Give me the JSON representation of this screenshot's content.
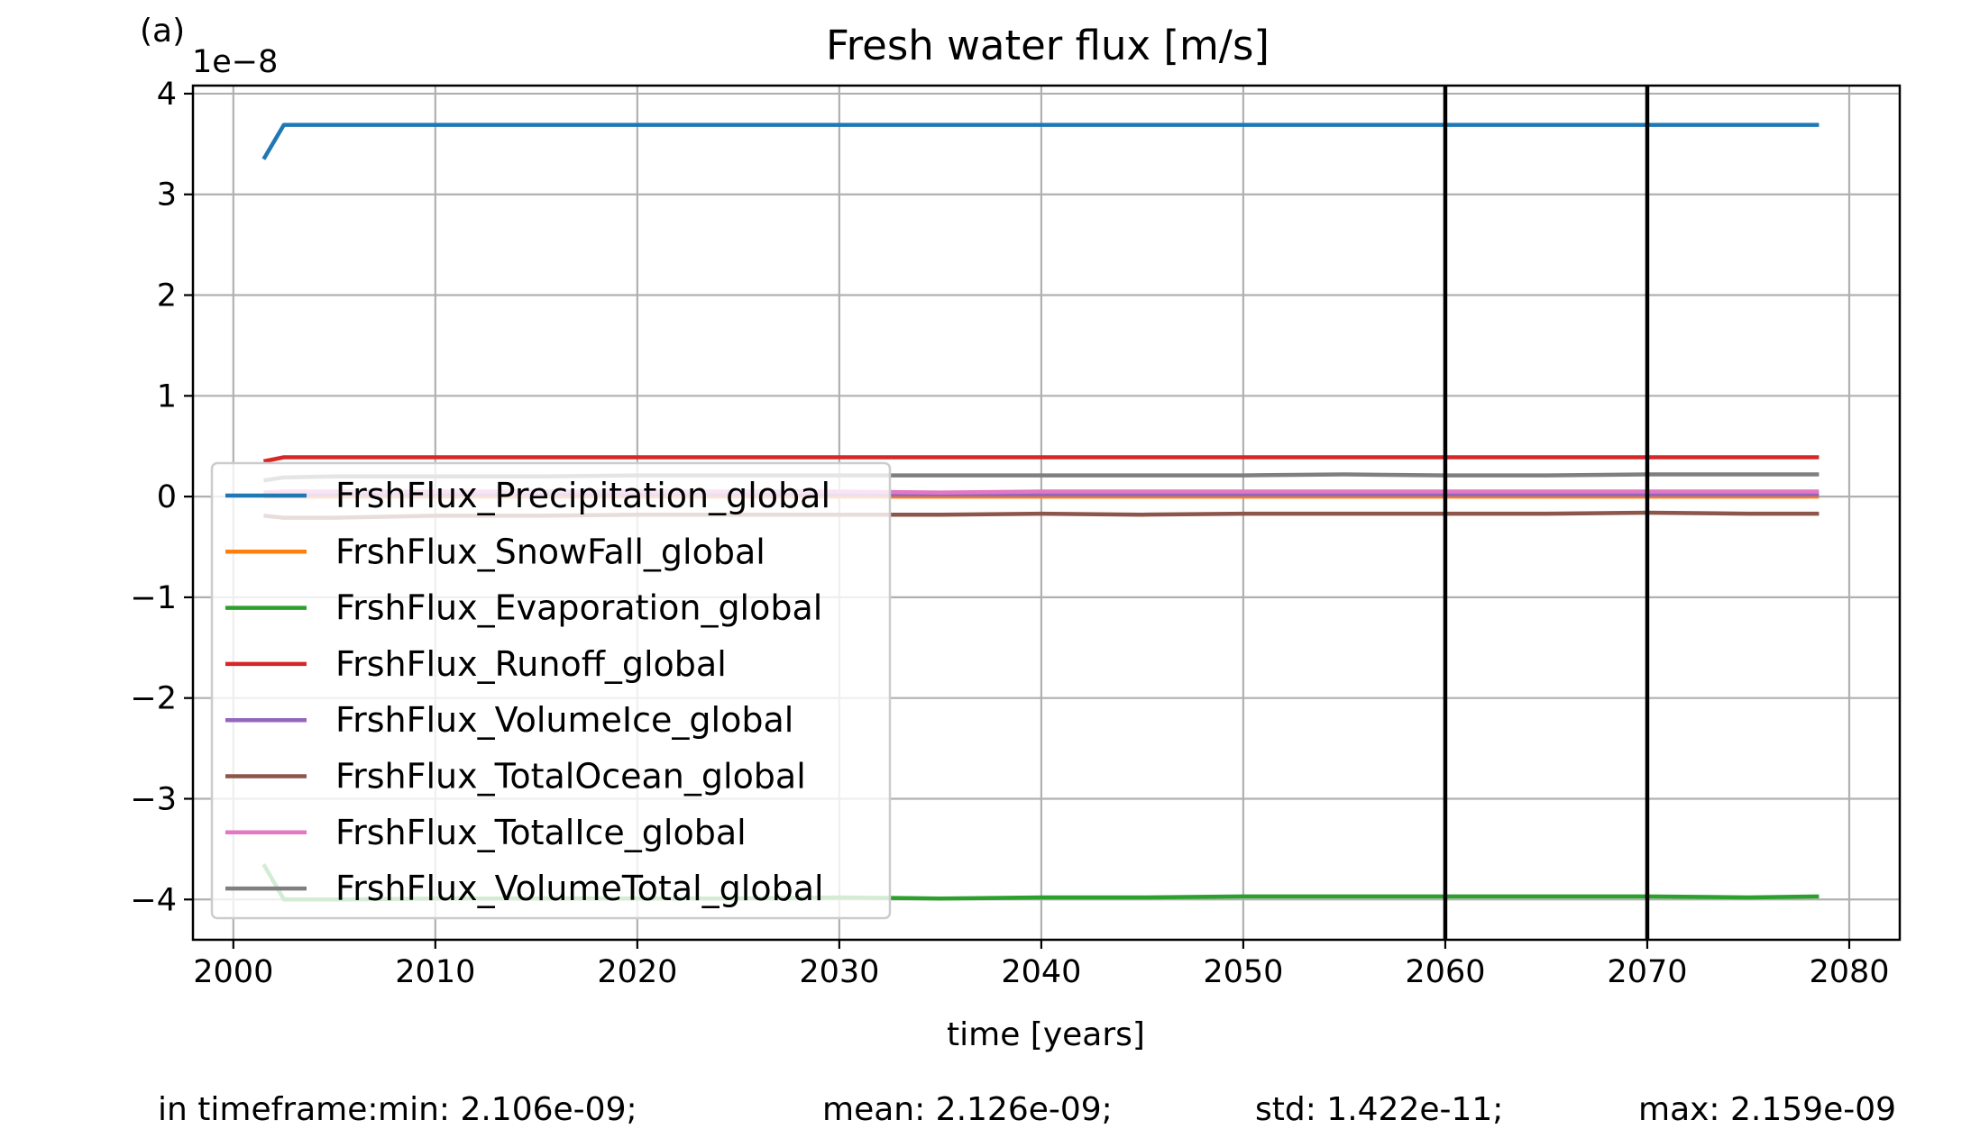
{
  "chart_data": {
    "type": "line",
    "panel_label": "(a)",
    "title": "Fresh water flux [m/s]",
    "xlabel": "time [years]",
    "ylabel": "",
    "y_scale_label": "1e−8",
    "xlim": [
      1998,
      2082.5
    ],
    "ylim": [
      -4.4,
      4.08
    ],
    "xticks": [
      2000,
      2010,
      2020,
      2030,
      2040,
      2050,
      2060,
      2070,
      2080
    ],
    "xtick_labels": [
      "2000",
      "2010",
      "2020",
      "2030",
      "2040",
      "2050",
      "2060",
      "2070",
      "2080"
    ],
    "yticks": [
      4,
      3,
      2,
      1,
      0,
      -1,
      -2,
      -3,
      -4
    ],
    "ytick_labels": [
      "4",
      "3",
      "2",
      "1",
      "0",
      "−1",
      "−2",
      "−3",
      "−4"
    ],
    "grid": true,
    "legend_position": "center-left",
    "vlines": [
      2060,
      2070
    ],
    "x": [
      2001.5,
      2002.5,
      2005,
      2010,
      2015,
      2020,
      2025,
      2030,
      2035,
      2040,
      2045,
      2050,
      2055,
      2060,
      2065,
      2070,
      2075,
      2078.5
    ],
    "series": [
      {
        "name": "FrshFlux_Precipitation_global",
        "color": "#1f77b4",
        "values": [
          3.35,
          3.69,
          3.69,
          3.69,
          3.69,
          3.69,
          3.69,
          3.69,
          3.69,
          3.69,
          3.69,
          3.69,
          3.69,
          3.69,
          3.69,
          3.69,
          3.69,
          3.69
        ]
      },
      {
        "name": "FrshFlux_SnowFall_global",
        "color": "#ff7f0e",
        "values": [
          0.0,
          0.0,
          0.0,
          0.0,
          0.0,
          0.0,
          0.0,
          0.0,
          0.0,
          0.0,
          0.0,
          0.0,
          0.0,
          0.0,
          0.0,
          0.0,
          0.0,
          0.0
        ]
      },
      {
        "name": "FrshFlux_Evaporation_global",
        "color": "#2ca02c",
        "values": [
          -3.65,
          -4.0,
          -4.0,
          -3.99,
          -3.99,
          -3.99,
          -3.99,
          -3.98,
          -3.99,
          -3.98,
          -3.98,
          -3.97,
          -3.97,
          -3.97,
          -3.97,
          -3.97,
          -3.98,
          -3.97
        ]
      },
      {
        "name": "FrshFlux_Runoff_global",
        "color": "#d62728",
        "values": [
          0.35,
          0.39,
          0.39,
          0.39,
          0.39,
          0.39,
          0.39,
          0.39,
          0.39,
          0.39,
          0.39,
          0.39,
          0.39,
          0.39,
          0.39,
          0.39,
          0.39,
          0.39
        ]
      },
      {
        "name": "FrshFlux_VolumeIce_global",
        "color": "#9467bd",
        "values": [
          0.02,
          0.02,
          0.02,
          0.02,
          0.02,
          0.02,
          0.02,
          0.02,
          0.02,
          0.02,
          0.02,
          0.02,
          0.02,
          0.02,
          0.02,
          0.02,
          0.02,
          0.02
        ]
      },
      {
        "name": "FrshFlux_TotalOcean_global",
        "color": "#8c564b",
        "values": [
          -0.19,
          -0.21,
          -0.21,
          -0.19,
          -0.19,
          -0.18,
          -0.18,
          -0.18,
          -0.18,
          -0.17,
          -0.18,
          -0.17,
          -0.17,
          -0.17,
          -0.17,
          -0.16,
          -0.17,
          -0.17
        ]
      },
      {
        "name": "FrshFlux_TotalIce_global",
        "color": "#e377c2",
        "values": [
          0.04,
          0.05,
          0.05,
          0.05,
          0.05,
          0.05,
          0.05,
          0.05,
          0.04,
          0.05,
          0.05,
          0.05,
          0.05,
          0.05,
          0.05,
          0.05,
          0.05,
          0.05
        ]
      },
      {
        "name": "FrshFlux_VolumeTotal_global",
        "color": "#7f7f7f",
        "values": [
          0.16,
          0.19,
          0.2,
          0.2,
          0.2,
          0.21,
          0.21,
          0.21,
          0.21,
          0.21,
          0.21,
          0.21,
          0.22,
          0.21,
          0.21,
          0.22,
          0.22,
          0.22
        ]
      }
    ],
    "stats": {
      "prefix": "in timeframe:",
      "min": "min: 2.106e-09;",
      "mean": "mean: 2.126e-09;",
      "std": "std: 1.422e-11;",
      "max": "max: 2.159e-09"
    }
  }
}
